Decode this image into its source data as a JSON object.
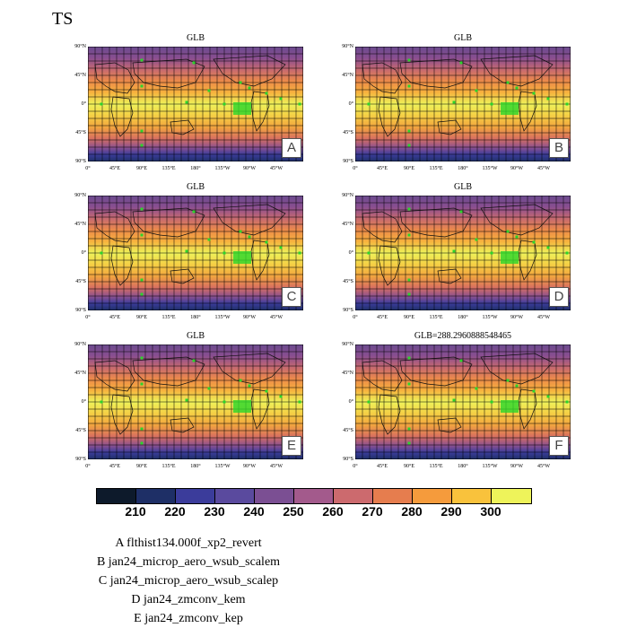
{
  "page_title": "TS",
  "chart_data": {
    "type": "heatmap",
    "variable": "TS",
    "lat_ticks": [
      "90°N",
      "45°N",
      "0°",
      "45°S",
      "90°S"
    ],
    "lon_ticks": [
      "0°",
      "45°E",
      "90°E",
      "135°E",
      "180°",
      "135°W",
      "90°W",
      "45°W"
    ],
    "panels": [
      {
        "id": "A",
        "title": "GLB"
      },
      {
        "id": "B",
        "title": "GLB"
      },
      {
        "id": "C",
        "title": "GLB"
      },
      {
        "id": "D",
        "title": "GLB"
      },
      {
        "id": "E",
        "title": "GLB"
      },
      {
        "id": "F",
        "title": "GLB=288.2960888548465"
      }
    ],
    "colorbar": {
      "levels": [
        210,
        220,
        230,
        240,
        250,
        260,
        270,
        280,
        290,
        300
      ],
      "colors": [
        "#0d1a2b",
        "#1e2f66",
        "#3b3c9b",
        "#5a4a9e",
        "#7b4f93",
        "#a35a8c",
        "#cc6a6e",
        "#e67d4e",
        "#f59b3c",
        "#f9c23c",
        "#eef35a"
      ]
    }
  },
  "legend": [
    "A  flthist134.000f_xp2_revert",
    "B  jan24_microp_aero_wsub_scalem",
    "C  jan24_microp_aero_wsub_scalep",
    "D  jan24_zmconv_kem",
    "E  jan24_zmconv_kep"
  ]
}
